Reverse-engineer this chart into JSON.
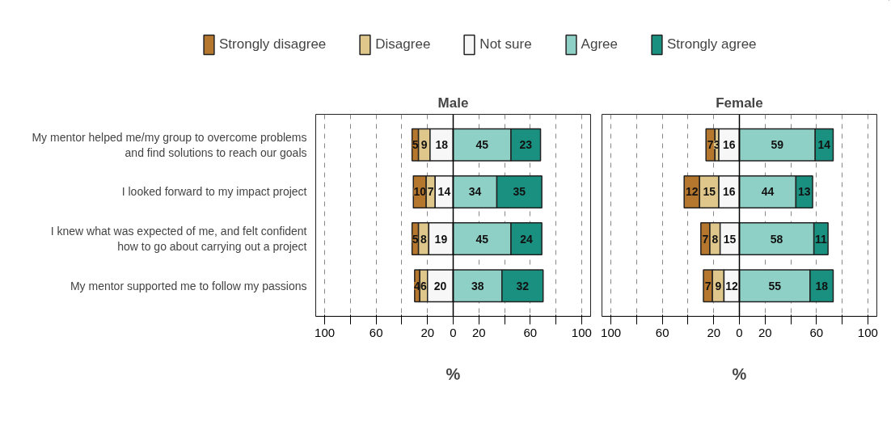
{
  "chart_data": [
    {
      "type": "bar",
      "orientation": "horizontal",
      "title": "Male",
      "xlabel": "%",
      "categories": [
        "My mentor helped me/my group to overcome problems and find solutions to reach our goals",
        "I looked forward to my impact project",
        "I knew what was expected of me, and felt confident how to go about carrying out a project",
        "My mentor supported me to follow my passions"
      ],
      "series": [
        {
          "name": "Strongly disagree",
          "color": "#b5772d",
          "values": [
            5,
            10,
            5,
            4
          ],
          "base": [
            -32,
            -31,
            -32,
            -30
          ]
        },
        {
          "name": "Disagree",
          "color": "#dfc78c",
          "values": [
            9,
            7,
            8,
            6
          ],
          "base": [
            -27,
            -21,
            -27,
            -26
          ]
        },
        {
          "name": "Not sure",
          "color": "#f7f7f7",
          "values": [
            18,
            14,
            19,
            20
          ],
          "base": [
            -18,
            -14,
            -19,
            -20
          ]
        },
        {
          "name": "Agree",
          "color": "#8fd0c6",
          "values": [
            45,
            34,
            45,
            38
          ],
          "base": [
            0,
            0,
            0,
            0
          ]
        },
        {
          "name": "Strongly agree",
          "color": "#1a9080",
          "values": [
            23,
            35,
            24,
            32
          ],
          "base": [
            45,
            34,
            45,
            38
          ]
        }
      ],
      "xlim": [
        -107,
        107
      ],
      "xticks": [
        {
          "value": -100,
          "label": "100"
        },
        {
          "value": -80,
          "label": null
        },
        {
          "value": -60,
          "label": "60"
        },
        {
          "value": -40,
          "label": null
        },
        {
          "value": -20,
          "label": "20"
        },
        0,
        20,
        {
          "value": 40,
          "label": null
        },
        60,
        {
          "value": 80,
          "label": null
        },
        100
      ],
      "ref_lines": [
        {
          "axis": "x",
          "value": 0,
          "color": "#000000",
          "line_style": "solid"
        }
      ],
      "grid": "x",
      "legend": "top",
      "data_labels": true
    },
    {
      "type": "bar",
      "orientation": "horizontal",
      "title": "Female",
      "xlabel": "%",
      "categories": [
        "My mentor helped me/my group to overcome problems and find solutions to reach our goals",
        "I looked forward to my impact project",
        "I knew what was expected of me, and felt confident how to go about carrying out a project",
        "My mentor supported me to follow my passions"
      ],
      "series": [
        {
          "color": "#b5772d",
          "values": [
            7,
            12,
            7,
            7
          ],
          "base": [
            -26,
            -43,
            -30,
            -28
          ]
        },
        {
          "color": "#dfc78c",
          "values": [
            3,
            15,
            8,
            9
          ],
          "base": [
            -19,
            -31,
            -23,
            -21
          ]
        },
        {
          "color": "#f7f7f7",
          "values": [
            16,
            16,
            15,
            12
          ],
          "base": [
            -16,
            -16,
            -15,
            -12
          ]
        },
        {
          "color": "#8fd0c6",
          "values": [
            59,
            44,
            58,
            55
          ],
          "base": [
            0,
            0,
            0,
            0
          ]
        },
        {
          "color": "#1a9080",
          "values": [
            14,
            13,
            11,
            18
          ],
          "base": [
            59,
            44,
            58,
            55
          ]
        }
      ],
      "xlim": [
        -107,
        107
      ],
      "xticks": [
        {
          "value": -100,
          "label": "100"
        },
        {
          "value": -80,
          "label": null
        },
        {
          "value": -60,
          "label": "60"
        },
        {
          "value": -40,
          "label": null
        },
        {
          "value": -20,
          "label": "20"
        },
        0,
        20,
        {
          "value": 40,
          "label": null
        },
        60,
        {
          "value": 80,
          "label": null
        },
        100
      ],
      "ref_lines": [
        {
          "axis": "x",
          "value": 0,
          "color": "#000000",
          "line_style": "solid"
        }
      ],
      "grid": "x",
      "tick_labels": "x",
      "data_labels": true
    }
  ]
}
